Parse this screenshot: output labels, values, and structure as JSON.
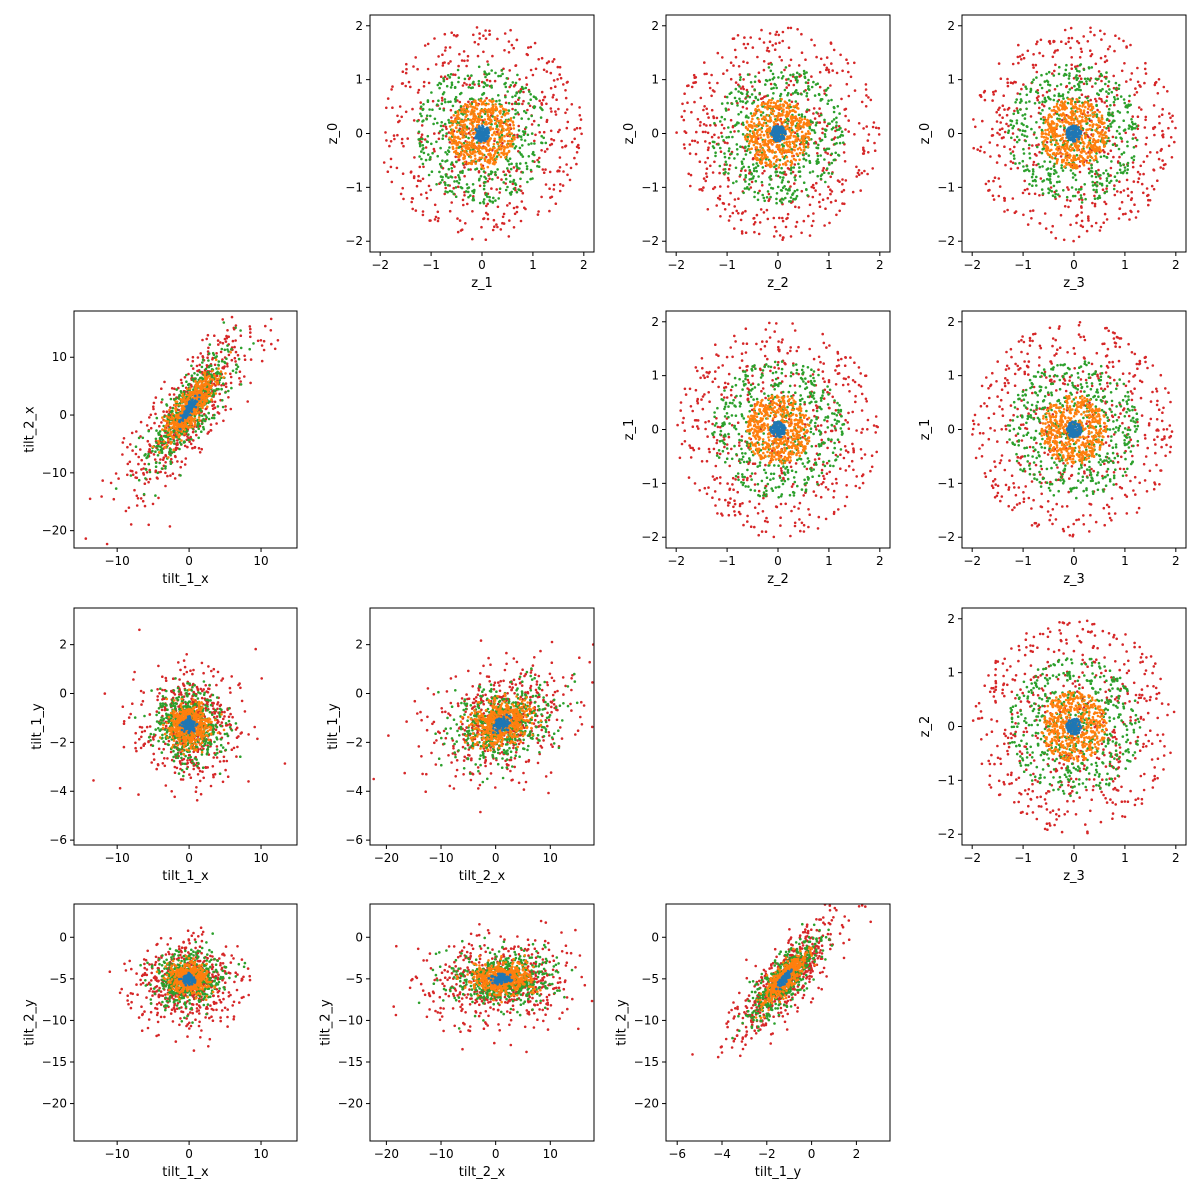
{
  "chart_data": {
    "type": "scatter",
    "layout": "pairwise-grid",
    "point_colors": [
      "#1f77b4",
      "#ff7f0e",
      "#2ca02c",
      "#d62728"
    ],
    "panels": [
      {
        "id": "z0-z1",
        "xlabel": "z_1",
        "ylabel": "z_0",
        "xlim": [
          -2.2,
          2.2
        ],
        "ylim": [
          -2.2,
          2.2
        ],
        "xticks": [
          -2,
          -1,
          0,
          1,
          2
        ],
        "yticks": [
          -2,
          -1,
          0,
          1,
          2
        ],
        "dist": "disc"
      },
      {
        "id": "z0-z2",
        "xlabel": "z_2",
        "ylabel": "z_0",
        "xlim": [
          -2.2,
          2.2
        ],
        "ylim": [
          -2.2,
          2.2
        ],
        "xticks": [
          -2,
          -1,
          0,
          1,
          2
        ],
        "yticks": [
          -2,
          -1,
          0,
          1,
          2
        ],
        "dist": "disc"
      },
      {
        "id": "z0-z3",
        "xlabel": "z_3",
        "ylabel": "z_0",
        "xlim": [
          -2.2,
          2.2
        ],
        "ylim": [
          -2.2,
          2.2
        ],
        "xticks": [
          -2,
          -1,
          0,
          1,
          2
        ],
        "yticks": [
          -2,
          -1,
          0,
          1,
          2
        ],
        "dist": "disc"
      },
      {
        "id": "tilt2x-tilt1x",
        "xlabel": "tilt_1_x",
        "ylabel": "tilt_2_x",
        "xlim": [
          -16,
          15
        ],
        "ylim": [
          -23,
          18
        ],
        "xticks": [
          -10,
          0,
          10
        ],
        "yticks": [
          -20,
          -10,
          0,
          10
        ],
        "dist": "tilt2x_vs_tilt1x"
      },
      {
        "id": "z1-z2",
        "xlabel": "z_2",
        "ylabel": "z_1",
        "xlim": [
          -2.2,
          2.2
        ],
        "ylim": [
          -2.2,
          2.2
        ],
        "xticks": [
          -2,
          -1,
          0,
          1,
          2
        ],
        "yticks": [
          -2,
          -1,
          0,
          1,
          2
        ],
        "dist": "disc"
      },
      {
        "id": "z1-z3",
        "xlabel": "z_3",
        "ylabel": "z_1",
        "xlim": [
          -2.2,
          2.2
        ],
        "ylim": [
          -2.2,
          2.2
        ],
        "xticks": [
          -2,
          -1,
          0,
          1,
          2
        ],
        "yticks": [
          -2,
          -1,
          0,
          1,
          2
        ],
        "dist": "disc"
      },
      {
        "id": "tilt1y-tilt1x",
        "xlabel": "tilt_1_x",
        "ylabel": "tilt_1_y",
        "xlim": [
          -16,
          15
        ],
        "ylim": [
          -6.2,
          3.5
        ],
        "xticks": [
          -10,
          0,
          10
        ],
        "yticks": [
          -6,
          -4,
          -2,
          0,
          2
        ],
        "dist": "tilt1y_vs_tilt1x"
      },
      {
        "id": "tilt1y-tilt2x",
        "xlabel": "tilt_2_x",
        "ylabel": "tilt_1_y",
        "xlim": [
          -23,
          18
        ],
        "ylim": [
          -6.2,
          3.5
        ],
        "xticks": [
          -20,
          -10,
          0,
          10
        ],
        "yticks": [
          -6,
          -4,
          -2,
          0,
          2
        ],
        "dist": "tilt1y_vs_tilt2x"
      },
      {
        "id": "z2-z3",
        "xlabel": "z_3",
        "ylabel": "z_2",
        "xlim": [
          -2.2,
          2.2
        ],
        "ylim": [
          -2.2,
          2.2
        ],
        "xticks": [
          -2,
          -1,
          0,
          1,
          2
        ],
        "yticks": [
          -2,
          -1,
          0,
          1,
          2
        ],
        "dist": "disc"
      },
      {
        "id": "tilt2y-tilt1x",
        "xlabel": "tilt_1_x",
        "ylabel": "tilt_2_y",
        "xlim": [
          -16,
          15
        ],
        "ylim": [
          -24.5,
          4
        ],
        "xticks": [
          -10,
          0,
          10
        ],
        "yticks": [
          -20,
          -15,
          -10,
          -5,
          0
        ],
        "dist": "tilt2y_vs_tilt1x"
      },
      {
        "id": "tilt2y-tilt2x",
        "xlabel": "tilt_2_x",
        "ylabel": "tilt_2_y",
        "xlim": [
          -23,
          18
        ],
        "ylim": [
          -24.5,
          4
        ],
        "xticks": [
          -20,
          -10,
          0,
          10
        ],
        "yticks": [
          -20,
          -15,
          -10,
          -5,
          0
        ],
        "dist": "tilt2y_vs_tilt2x"
      },
      {
        "id": "tilt2y-tilt1y",
        "xlabel": "tilt_1_y",
        "ylabel": "tilt_2_y",
        "xlim": [
          -6.5,
          3.5
        ],
        "ylim": [
          -24.5,
          4
        ],
        "xticks": [
          -6,
          -4,
          -2,
          0,
          2
        ],
        "yticks": [
          -20,
          -15,
          -10,
          -5,
          0
        ],
        "dist": "tilt2y_vs_tilt1y"
      }
    ]
  }
}
